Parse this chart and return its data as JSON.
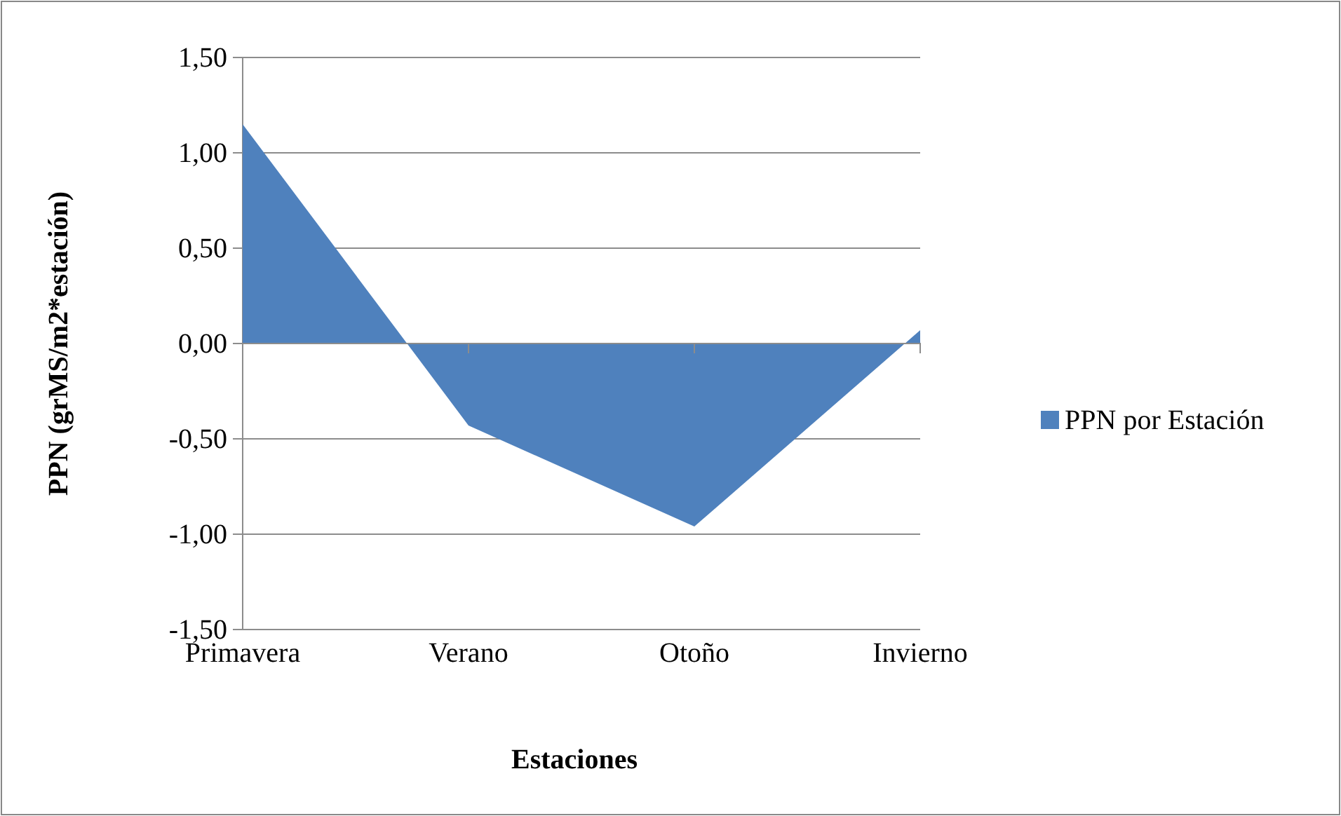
{
  "chart_data": {
    "type": "area",
    "xlabel": "Estaciones",
    "ylabel": "PPN (grMS/m2*estación)",
    "categories": [
      "Primavera",
      "Verano",
      "Otoño",
      "Invierno"
    ],
    "series": [
      {
        "name": "PPN por Estación",
        "color": "#4f81bd",
        "values": [
          1.15,
          -0.43,
          -0.96,
          0.07
        ]
      }
    ],
    "ylim": [
      -1.5,
      1.5
    ],
    "yticks": [
      {
        "value": -1.5,
        "label": "-1,50"
      },
      {
        "value": -1,
        "label": "-1,00"
      },
      {
        "value": -0.5,
        "label": "-0,50"
      },
      {
        "value": 0,
        "label": "0,00"
      },
      {
        "value": 0.5,
        "label": "0,50"
      },
      {
        "value": 1,
        "label": "1,00"
      },
      {
        "value": 1.5,
        "label": "1,50"
      }
    ],
    "grid": "y",
    "legend": "right"
  }
}
